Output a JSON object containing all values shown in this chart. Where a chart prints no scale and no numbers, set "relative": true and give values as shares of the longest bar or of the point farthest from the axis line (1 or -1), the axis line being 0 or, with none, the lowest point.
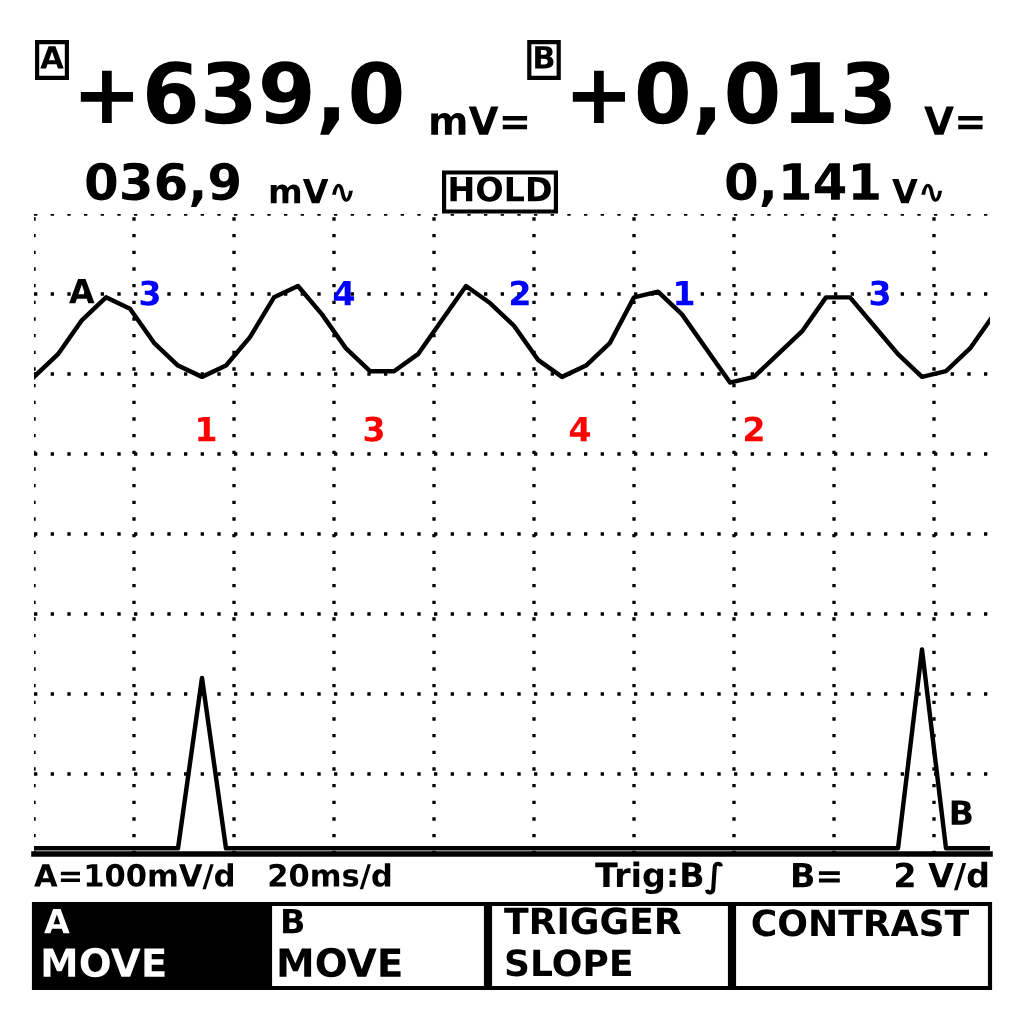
{
  "chart_data": {
    "type": "line",
    "relative": true,
    "marker": "none",
    "line_style": "solid",
    "grid": true,
    "legend": false,
    "categories": [
      null,
      null,
      null,
      null,
      null,
      null,
      null,
      null,
      null,
      null,
      null,
      null,
      null,
      null,
      null,
      null,
      null,
      null,
      null,
      null,
      null,
      null,
      null,
      null,
      null,
      null,
      null,
      null,
      null,
      null,
      null,
      null,
      null,
      null,
      null,
      null,
      null,
      null,
      null,
      null,
      null
    ],
    "series": [
      {
        "name": "A",
        "color": "#000000",
        "values": [
          0.84,
          0.88,
          0.94,
          0.98,
          0.96,
          0.9,
          0.86,
          0.84,
          0.86,
          0.91,
          0.98,
          1.0,
          0.95,
          0.89,
          0.85,
          0.85,
          0.88,
          0.94,
          1.0,
          0.97,
          0.93,
          0.87,
          0.84,
          0.86,
          0.9,
          0.98,
          0.99,
          0.95,
          0.89,
          0.83,
          0.84,
          0.88,
          0.92,
          0.98,
          0.98,
          0.93,
          0.88,
          0.84,
          0.85,
          0.89,
          0.95
        ]
      },
      {
        "name": "B",
        "color": "#000000",
        "values": [
          0.01,
          0.01,
          0.01,
          0.01,
          0.01,
          0.01,
          0.01,
          0.31,
          0.01,
          0.01,
          0.01,
          0.01,
          0.01,
          0.01,
          0.01,
          0.01,
          0.01,
          0.01,
          0.01,
          0.01,
          0.01,
          0.01,
          0.01,
          0.01,
          0.01,
          0.01,
          0.01,
          0.01,
          0.01,
          0.01,
          0.01,
          0.01,
          0.01,
          0.01,
          0.01,
          0.01,
          0.01,
          0.36,
          0.01,
          0.01,
          0.01
        ]
      }
    ],
    "annotations": [
      "A",
      "+639,0",
      "mV=",
      "B",
      "+0,013",
      "V=",
      "036,9",
      "mV∿",
      "HOLD",
      "0,141",
      "V∿",
      "A=100mV/d",
      "20ms/d",
      "Trig:B∫",
      "B=",
      "2 V/d",
      "A",
      "MOVE",
      "B",
      "MOVE",
      "TRIGGER",
      "SLOPE",
      "CONTRAST",
      "3",
      "4",
      "2",
      "1",
      "3",
      "1",
      "3",
      "4",
      "2"
    ]
  }
}
